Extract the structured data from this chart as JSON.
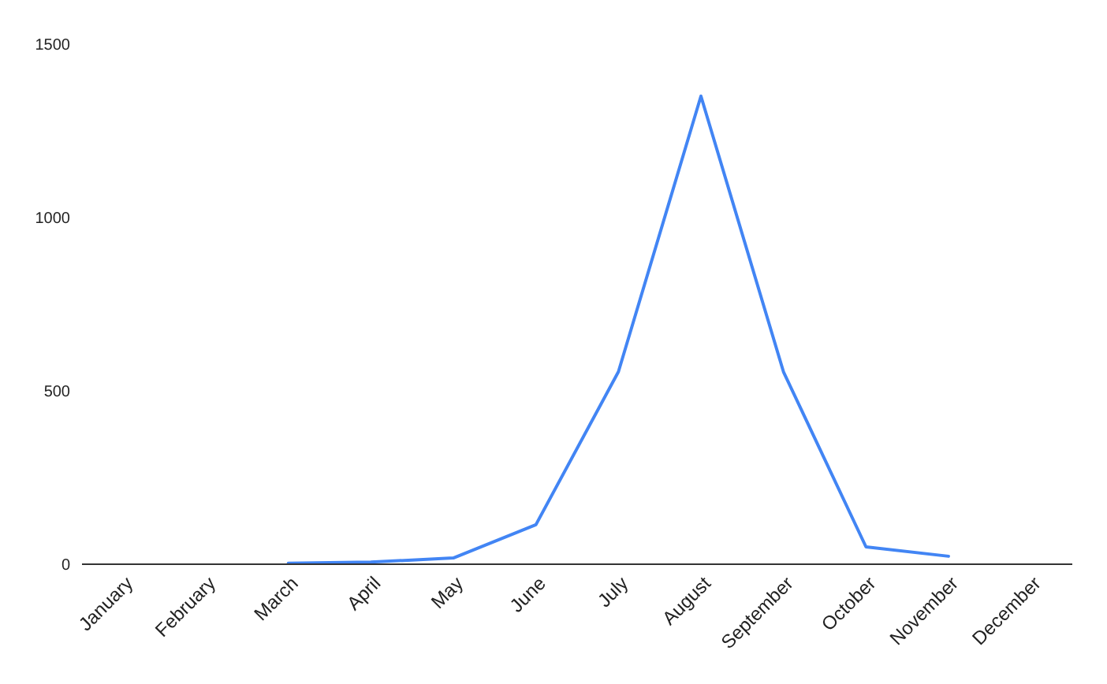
{
  "chart_data": {
    "type": "line",
    "categories": [
      "January",
      "February",
      "March",
      "April",
      "May",
      "June",
      "July",
      "August",
      "September",
      "October",
      "November",
      "December"
    ],
    "series": [
      {
        "color": "#4285f4",
        "values": [
          null,
          null,
          3,
          6,
          18,
          114,
          555,
          1350,
          555,
          50,
          23,
          null
        ]
      }
    ],
    "ylim": [
      0,
      1500
    ],
    "yticks": [
      0,
      500,
      1000,
      1500
    ]
  }
}
